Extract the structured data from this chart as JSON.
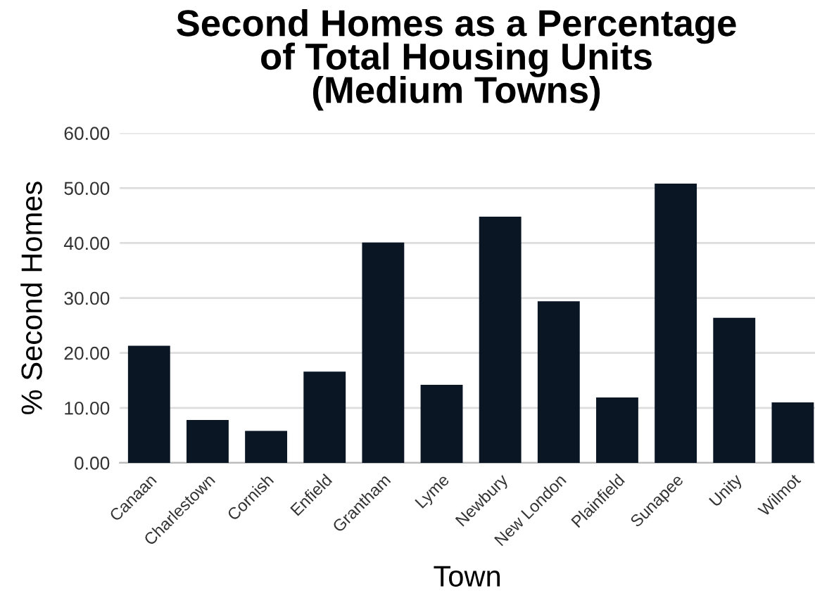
{
  "chart_data": {
    "type": "bar",
    "title": "Second Homes as a Percentage\nof Total Housing Units\n(Medium Towns)",
    "xlabel": "Town",
    "ylabel": "% Second Homes",
    "categories": [
      "Canaan",
      "Charlestown",
      "Cornish",
      "Enfield",
      "Grantham",
      "Lyme",
      "Newbury",
      "New London",
      "Plainfield",
      "Sunapee",
      "Unity",
      "Wilmot"
    ],
    "values": [
      21.3,
      7.8,
      5.8,
      16.6,
      40.1,
      14.2,
      44.8,
      29.4,
      11.9,
      50.8,
      26.4,
      11.0
    ],
    "color": "#0b1625",
    "ylim": [
      0,
      60
    ],
    "yticks": [
      {
        "value": 0,
        "label": "0.00"
      },
      {
        "value": 10,
        "label": "10.00"
      },
      {
        "value": 20,
        "label": "20.00"
      },
      {
        "value": 30,
        "label": "30.00"
      },
      {
        "value": 40,
        "label": "40.00"
      },
      {
        "value": 50,
        "label": "50.00"
      },
      {
        "value": 60,
        "label": "60.00"
      }
    ],
    "grid": "y",
    "legend": false
  }
}
